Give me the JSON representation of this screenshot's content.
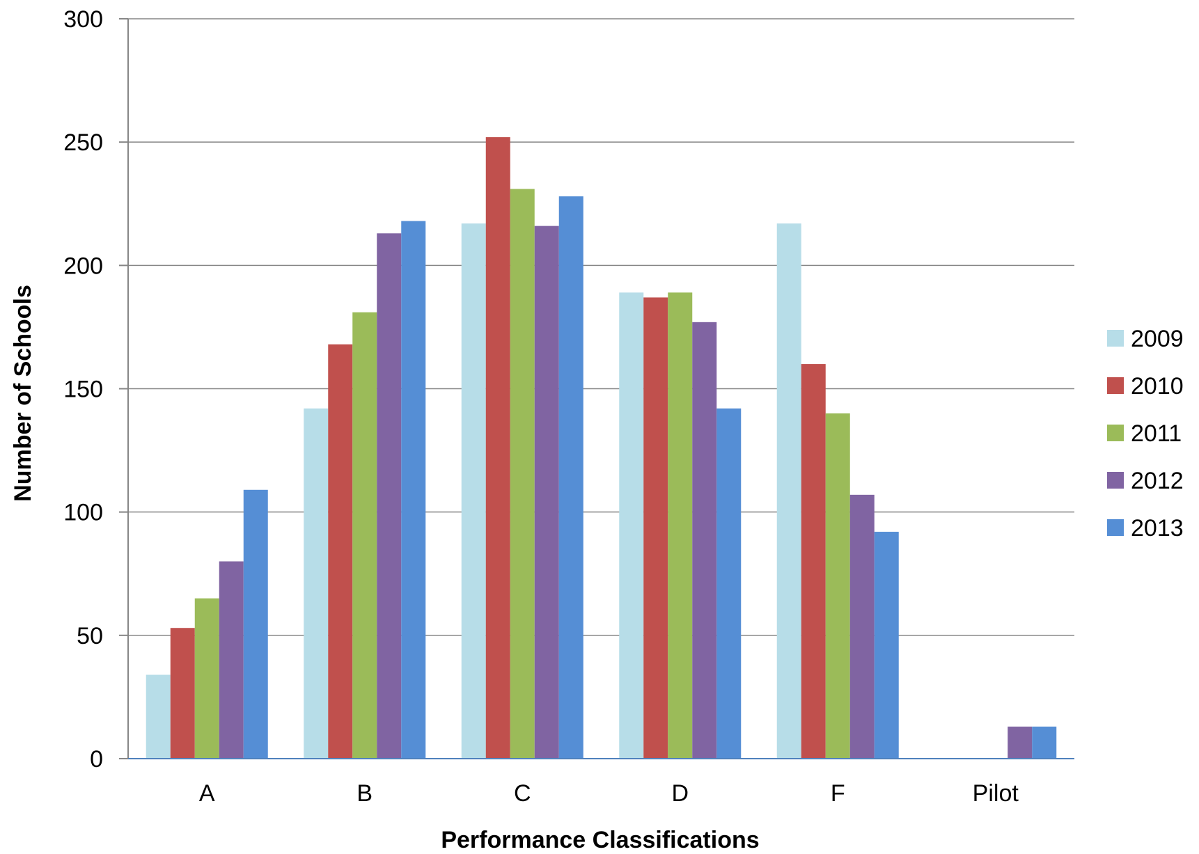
{
  "chart_data": {
    "type": "bar",
    "title": "",
    "xlabel": "Performance Classifications",
    "ylabel": "Number of Schools",
    "categories": [
      "A",
      "B",
      "C",
      "D",
      "F",
      "Pilot"
    ],
    "series": [
      {
        "name": "2009",
        "color": "#B7DDE8",
        "values": [
          34,
          142,
          217,
          189,
          217,
          0
        ]
      },
      {
        "name": "2010",
        "color": "#C0504D",
        "values": [
          53,
          168,
          252,
          187,
          160,
          0
        ]
      },
      {
        "name": "2011",
        "color": "#9BBB59",
        "values": [
          65,
          181,
          231,
          189,
          140,
          0
        ]
      },
      {
        "name": "2012",
        "color": "#8064A2",
        "values": [
          80,
          213,
          216,
          177,
          107,
          13
        ]
      },
      {
        "name": "2013",
        "color": "#558ED5",
        "values": [
          109,
          218,
          228,
          142,
          92,
          13
        ]
      }
    ],
    "ylim": [
      0,
      300
    ],
    "yticks": [
      0,
      50,
      100,
      150,
      200,
      250,
      300
    ],
    "grid": true,
    "legend_position": "right"
  }
}
